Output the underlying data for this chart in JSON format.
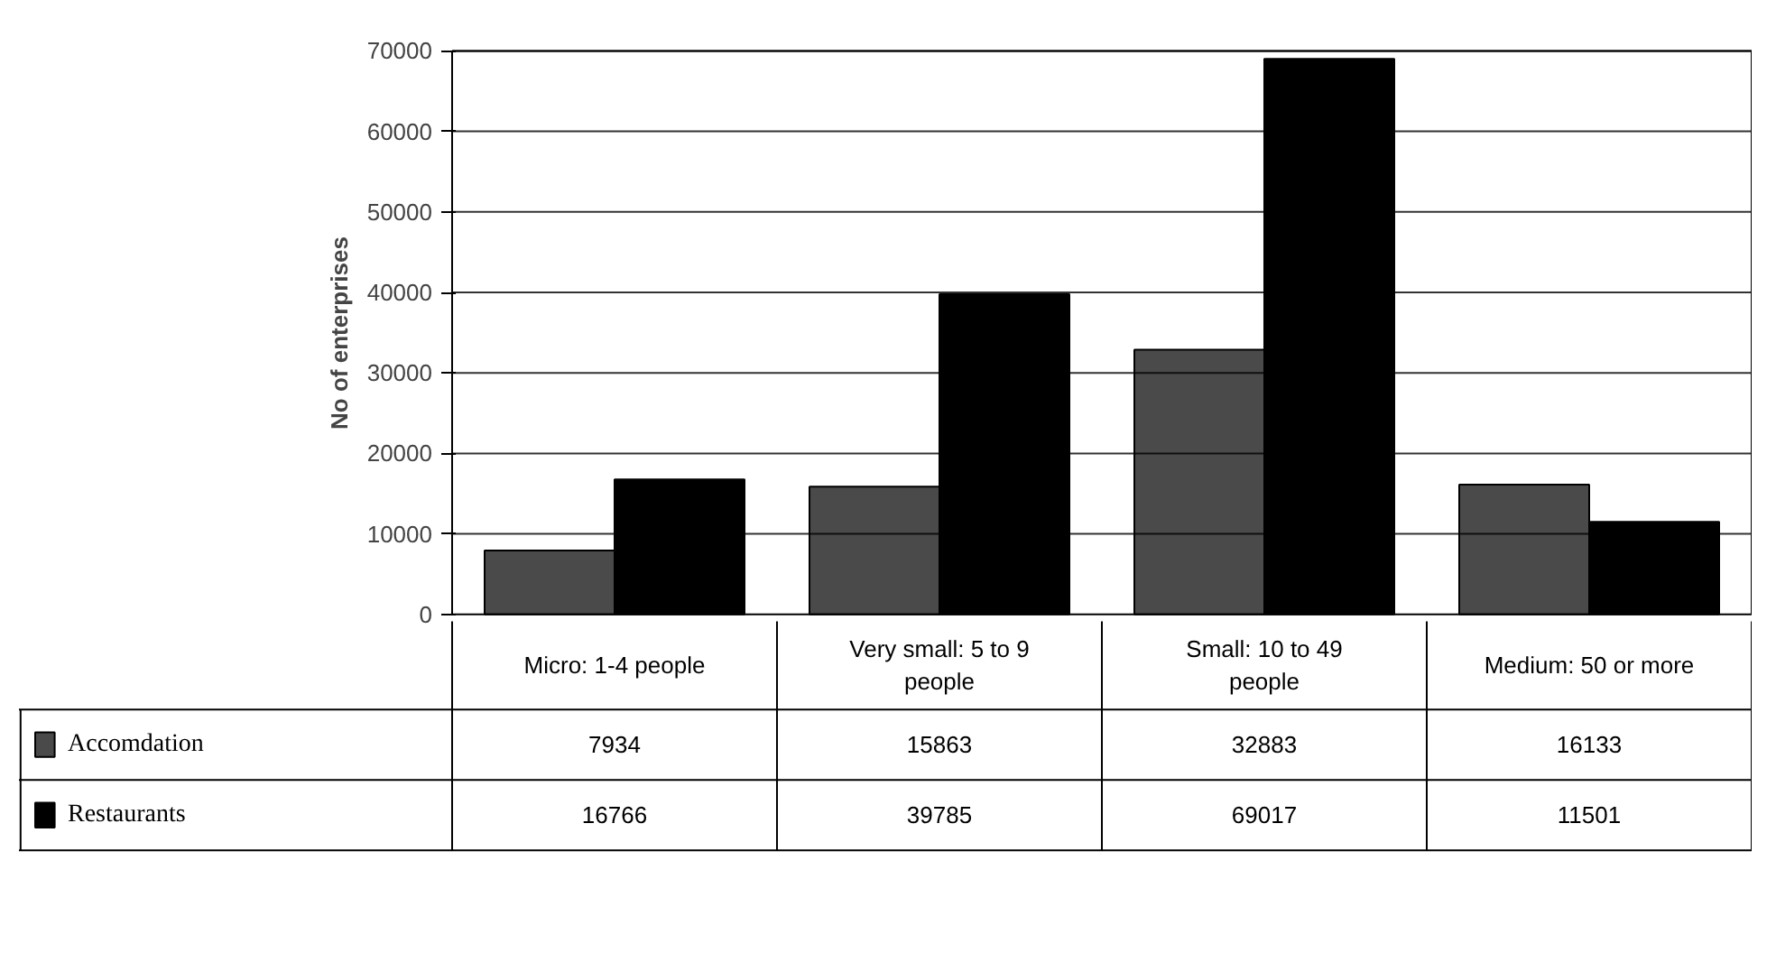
{
  "chart_data": {
    "type": "bar",
    "ylabel": "No of enterprises",
    "categories": [
      "Micro: 1-4 people",
      "Very small: 5 to 9 people",
      "Small: 10 to 49 people",
      "Medium: 50 or more"
    ],
    "series": [
      {
        "name": "Accomdation",
        "color": "#4a4a4a",
        "values": [
          7934,
          15863,
          32883,
          16133
        ]
      },
      {
        "name": "Restaurants",
        "color": "#000000",
        "values": [
          16766,
          39785,
          69017,
          11501
        ]
      }
    ],
    "ylim": [
      0,
      70000
    ],
    "yticks": [
      0,
      10000,
      20000,
      30000,
      40000,
      50000,
      60000,
      70000
    ],
    "grid": "y",
    "legend": "bottom",
    "data_labels": true
  }
}
